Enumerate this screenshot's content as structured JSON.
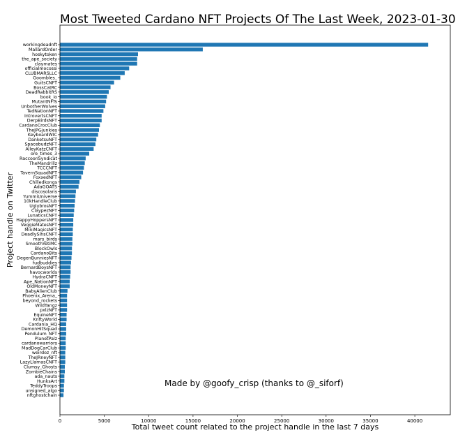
{
  "chart_data": {
    "type": "bar",
    "orientation": "horizontal",
    "title": "Most Tweeted Cardano NFT Projects Of The Last Week, 2023-01-30",
    "xlabel": "Total tweet count related to the project handle in the last 7 days",
    "ylabel": "Project handle on Twitter",
    "annotation": "Made by @goofy_crisp (thanks to @_siforf)",
    "bar_color": "#1f77b4",
    "xlim": [
      0,
      44000
    ],
    "xticks": [
      0,
      5000,
      10000,
      15000,
      20000,
      25000,
      30000,
      35000,
      40000
    ],
    "grid": false,
    "categories": [
      "workingdeadnft",
      "MallardOrder",
      "hoskytoken",
      "the_ape_society",
      "claymates",
      "officialmocossi",
      "CLUBMARSLLC",
      "Goombles_",
      "GuitsCNFT",
      "BossCatRC",
      "DeadRabbitRS",
      "book_io",
      "MutantNFTs",
      "UnbotherWolves",
      "TedNationNFT",
      "IntrovertsCNFT",
      "DerpBirdsNFT",
      "CardanoCrocClub",
      "TheJPGjunkies",
      "KeyboardWIC",
      "DanketsuNFT",
      "SpacebudzNFT",
      "AlleyKatzCNFT",
      "ore_times_3",
      "RaccoonSyndicat",
      "TheMandrillz",
      "TCCCNFT",
      "TavernSquadNFT",
      "FoxxedNFT",
      "Chilledkongs",
      "AdaGOATS",
      "discosolaris",
      "YummiUniverse",
      "10kHandleClub",
      "UglybrosNFT",
      "ClaypezNFT",
      "LunaticsCNFT",
      "HappyHoppersNFT",
      "VeggieMatesNFT",
      "MiniMagicsNFT",
      "DeadlySinsCNFT",
      "mars_birds",
      "SmoothYetiMC",
      "BlockOwls",
      "CardanoBits",
      "DegenBunniesNFT",
      "fudbuddies",
      "BernardBoysNFT",
      "havocworlds",
      "HydraCNFT",
      "Ape_NationNFT",
      "OldMoneyNFT",
      "BabyAlienClub",
      "Phoenix_Arena_",
      "beyond_rockets",
      "WildTangz",
      "pxlzNFT",
      "EquineNFT",
      "KnftyWorld",
      "Cardania_HQ",
      "DemonHitSquad",
      "Pendulum_NFT",
      "PlanetPalz",
      "cardanowarriors",
      "MadDogCarClub",
      "weirdoz_nft",
      "TheJRneyNFT",
      "LazyLlamasCNFT",
      "Clumsy_Ghosts",
      "ZombieChains",
      "ada_nauts",
      "HunksArt",
      "TeddyTroops",
      "unsigned_algo",
      "nftghostchain"
    ],
    "values": [
      41500,
      16100,
      8800,
      8700,
      8700,
      7800,
      7300,
      6800,
      6100,
      5700,
      5500,
      5300,
      5200,
      5100,
      4900,
      4700,
      4700,
      4500,
      4400,
      4300,
      4100,
      4000,
      3800,
      3300,
      2900,
      2800,
      2700,
      2600,
      2400,
      2200,
      2100,
      1800,
      1750,
      1700,
      1650,
      1600,
      1550,
      1500,
      1500,
      1450,
      1450,
      1400,
      1400,
      1350,
      1350,
      1300,
      1250,
      1200,
      1200,
      1150,
      1100,
      1100,
      850,
      800,
      800,
      800,
      800,
      750,
      750,
      700,
      700,
      700,
      650,
      650,
      650,
      600,
      600,
      600,
      550,
      550,
      500,
      500,
      450,
      450,
      400
    ]
  }
}
